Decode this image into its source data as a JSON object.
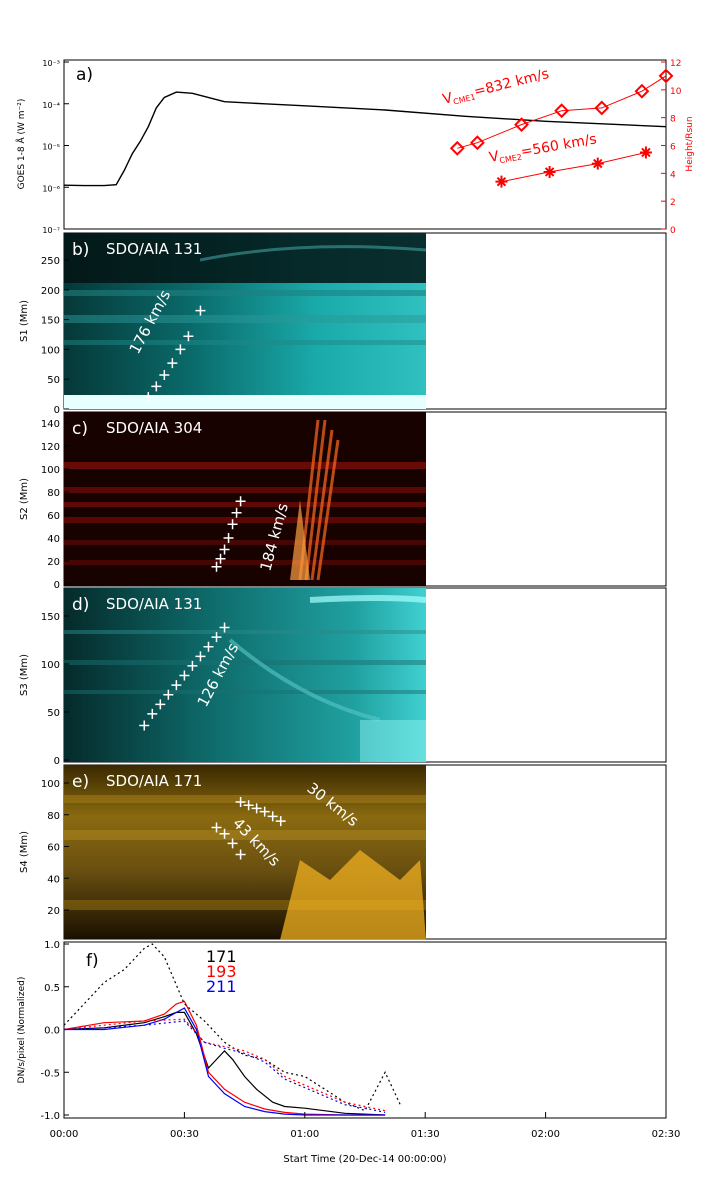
{
  "x_axis": {
    "label": "Start Time (20-Dec-14 00:00:00)",
    "ticks": [
      "00:00",
      "00:30",
      "01:00",
      "01:30",
      "02:00",
      "02:30"
    ],
    "range_minutes": [
      0,
      150
    ]
  },
  "panels": {
    "a": {
      "tag": "a)",
      "ylabel_left": "GOES 1-8 Å (W m⁻²)",
      "ylabel_right": "Height/Rsun",
      "left_ticks": [
        "10⁻³",
        "10⁻⁴",
        "10⁻⁵",
        "10⁻⁶",
        "10⁻⁷"
      ],
      "right_ticks": [
        "12",
        "10",
        "8",
        "6",
        "4",
        "2",
        "0"
      ],
      "cme1_label": "V",
      "cme1_sub": "CME1",
      "cme1_speed": "=832 km/s",
      "cme2_label": "V",
      "cme2_sub": "CME2",
      "cme2_speed": "=560 km/s",
      "colors": {
        "goes": "#000000",
        "cme": "#ff0000"
      }
    },
    "b": {
      "tag": "b)",
      "title": "SDO/AIA 131",
      "ylabel": "S1 (Mm)",
      "ticks": [
        "250",
        "200",
        "150",
        "100",
        "50",
        "0"
      ],
      "speed": "176 km/s",
      "color": "#00e0e0"
    },
    "c": {
      "tag": "c)",
      "title": "SDO/AIA 304",
      "ylabel": "S2 (Mm)",
      "ticks": [
        "140",
        "120",
        "100",
        "80",
        "60",
        "40",
        "20",
        "0"
      ],
      "speed": "184 km/s",
      "color": "#ff3010"
    },
    "d": {
      "tag": "d)",
      "title": "SDO/AIA 131",
      "ylabel": "S3 (Mm)",
      "ticks": [
        "150",
        "100",
        "50",
        "0"
      ],
      "speed": "126 km/s",
      "color": "#00e0e0"
    },
    "e": {
      "tag": "e)",
      "title": "SDO/AIA 171",
      "ylabel": "S4 (Mm)",
      "ticks": [
        "100",
        "80",
        "60",
        "40",
        "20"
      ],
      "speed_upper": "30 km/s",
      "speed_lower": "43 km/s",
      "color": "#e0a000"
    },
    "f": {
      "tag": "f)",
      "ylabel": "DN/s/pixel (Normalized)",
      "ticks": [
        "1.0",
        "0.5",
        "0.0",
        "-0.5",
        "-1.0"
      ],
      "legend": [
        {
          "name": "171",
          "color": "#000000"
        },
        {
          "name": "193",
          "color": "#ff0000"
        },
        {
          "name": "211",
          "color": "#0000ff"
        }
      ]
    }
  },
  "chart_data": [
    {
      "type": "line",
      "panel": "a",
      "series": [
        {
          "name": "GOES 1-8 Å",
          "x_minutes": [
            0,
            5,
            10,
            13,
            15,
            17,
            19,
            21,
            23,
            25,
            28,
            32,
            40,
            50,
            60,
            80,
            100,
            120,
            150
          ],
          "log10_flux": [
            -5.95,
            -5.96,
            -5.96,
            -5.94,
            -5.6,
            -5.2,
            -4.9,
            -4.55,
            -4.1,
            -3.85,
            -3.72,
            -3.75,
            -3.95,
            -4.0,
            -4.05,
            -4.15,
            -4.3,
            -4.42,
            -4.55
          ]
        },
        {
          "name": "CME1",
          "x_minutes": [
            98,
            103,
            114,
            124,
            134,
            144,
            150
          ],
          "height_rsun": [
            5.8,
            6.2,
            7.5,
            8.5,
            8.7,
            9.9,
            11.0
          ]
        },
        {
          "name": "CME2",
          "x_minutes": [
            109,
            121,
            133,
            145
          ],
          "height_rsun": [
            3.4,
            4.1,
            4.7,
            5.5
          ]
        }
      ]
    },
    {
      "type": "line",
      "panel": "f",
      "xlim": [
        0,
        150
      ],
      "ylim": [
        -1.0,
        1.0
      ],
      "series": [
        {
          "name": "171",
          "style": "solid",
          "x": [
            0,
            10,
            20,
            25,
            28,
            30,
            33,
            36,
            40,
            42,
            45,
            48,
            52,
            55,
            60,
            70,
            80
          ],
          "y": [
            0.0,
            0.02,
            0.08,
            0.15,
            0.2,
            0.2,
            -0.05,
            -0.45,
            -0.25,
            -0.35,
            -0.55,
            -0.7,
            -0.85,
            -0.9,
            -0.92,
            -0.98,
            -1.0
          ]
        },
        {
          "name": "193",
          "style": "solid",
          "x": [
            0,
            10,
            20,
            25,
            28,
            30,
            33,
            36,
            40,
            45,
            50,
            55,
            60,
            70,
            80
          ],
          "y": [
            0.0,
            0.08,
            0.1,
            0.18,
            0.3,
            0.33,
            0.05,
            -0.5,
            -0.7,
            -0.85,
            -0.93,
            -0.97,
            -0.99,
            -1.0,
            -1.0
          ]
        },
        {
          "name": "211",
          "style": "solid",
          "x": [
            0,
            10,
            20,
            25,
            28,
            30,
            33,
            36,
            40,
            45,
            50,
            55,
            60,
            70,
            80
          ],
          "y": [
            0.0,
            0.0,
            0.05,
            0.12,
            0.2,
            0.25,
            0.0,
            -0.55,
            -0.75,
            -0.9,
            -0.96,
            -0.99,
            -1.0,
            -1.0,
            -1.0
          ]
        },
        {
          "name": "171",
          "style": "dotted",
          "x": [
            0,
            5,
            10,
            15,
            20,
            22,
            25,
            30,
            35,
            40,
            45,
            50,
            55,
            60,
            65,
            70,
            75,
            80,
            82,
            84
          ],
          "y": [
            0.05,
            0.3,
            0.55,
            0.7,
            0.95,
            1.0,
            0.85,
            0.3,
            0.1,
            -0.15,
            -0.3,
            -0.35,
            -0.5,
            -0.55,
            -0.7,
            -0.85,
            -0.95,
            -0.5,
            -0.7,
            -0.9
          ]
        },
        {
          "name": "193",
          "style": "dotted",
          "x": [
            0,
            10,
            20,
            30,
            35,
            40,
            45,
            50,
            55,
            60,
            65,
            70,
            75,
            80
          ],
          "y": [
            0.0,
            0.05,
            0.1,
            0.12,
            -0.15,
            -0.2,
            -0.25,
            -0.35,
            -0.55,
            -0.65,
            -0.75,
            -0.85,
            -0.9,
            -0.95
          ]
        },
        {
          "name": "211",
          "style": "dotted",
          "x": [
            0,
            10,
            20,
            30,
            35,
            40,
            45,
            50,
            55,
            60,
            65,
            70,
            75,
            80
          ],
          "y": [
            0.0,
            0.02,
            0.05,
            0.1,
            -0.15,
            -0.22,
            -0.28,
            -0.38,
            -0.58,
            -0.68,
            -0.78,
            -0.88,
            -0.92,
            -0.97
          ]
        }
      ]
    },
    {
      "type": "scatter",
      "panel": "b",
      "fit_speed": "176 km/s",
      "x_minutes": [
        21,
        23,
        25,
        27,
        29,
        31,
        34
      ],
      "y_mm": [
        20,
        38,
        57,
        77,
        100,
        122,
        165
      ]
    },
    {
      "type": "scatter",
      "panel": "c",
      "fit_speed": "184 km/s",
      "x_minutes": [
        38,
        39,
        40,
        41,
        42,
        43,
        44
      ],
      "y_mm": [
        15,
        22,
        30,
        40,
        52,
        62,
        72
      ]
    },
    {
      "type": "scatter",
      "panel": "d",
      "fit_speed": "126 km/s",
      "x_minutes": [
        20,
        22,
        24,
        26,
        28,
        30,
        32,
        34,
        36,
        38,
        40
      ],
      "y_mm": [
        36,
        48,
        58,
        68,
        78,
        88,
        98,
        108,
        118,
        128,
        138
      ]
    },
    {
      "type": "scatter",
      "panel": "e",
      "fit_speed": "30 km/s",
      "x_minutes": [
        44,
        46,
        48,
        50,
        52,
        54
      ],
      "y_mm": [
        88,
        86,
        84,
        82,
        79,
        76
      ]
    },
    {
      "type": "scatter",
      "panel": "e",
      "fit_speed": "43 km/s",
      "x_minutes": [
        38,
        40,
        42,
        44
      ],
      "y_mm": [
        72,
        68,
        62,
        55
      ]
    }
  ]
}
